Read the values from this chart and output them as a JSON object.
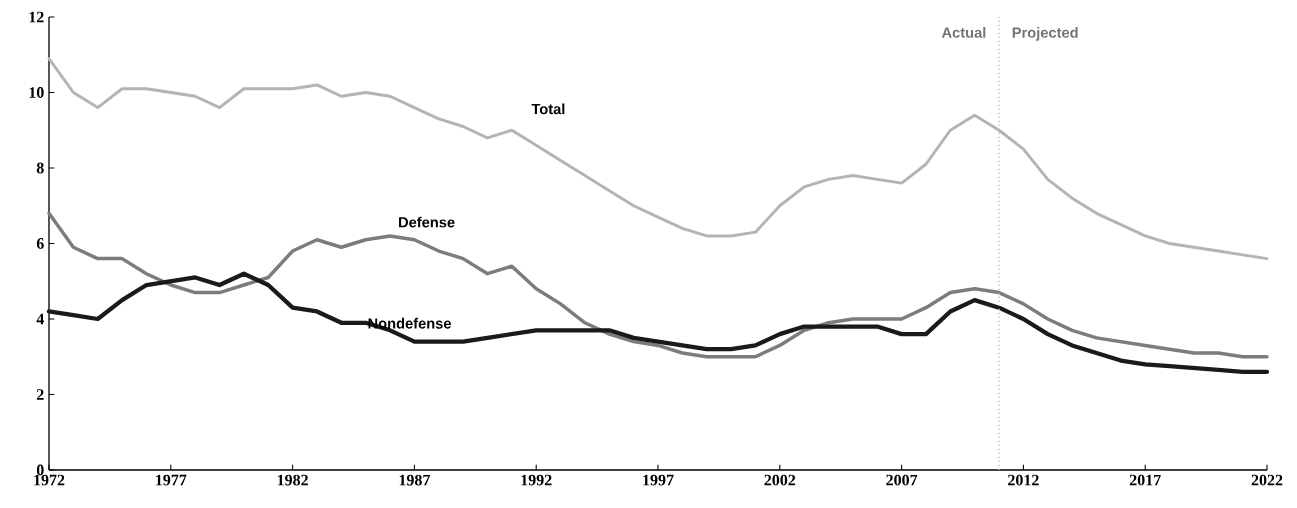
{
  "chart_data": {
    "type": "line",
    "x": [
      1972,
      1973,
      1974,
      1975,
      1976,
      1977,
      1978,
      1979,
      1980,
      1981,
      1982,
      1983,
      1984,
      1985,
      1986,
      1987,
      1988,
      1989,
      1990,
      1991,
      1992,
      1993,
      1994,
      1995,
      1996,
      1997,
      1998,
      1999,
      2000,
      2001,
      2002,
      2003,
      2004,
      2005,
      2006,
      2007,
      2008,
      2009,
      2010,
      2011,
      2012,
      2013,
      2014,
      2015,
      2016,
      2017,
      2018,
      2019,
      2020,
      2021,
      2022
    ],
    "series": [
      {
        "name": "Total",
        "color": "#b4b4b4",
        "values": [
          10.9,
          10.0,
          9.6,
          10.1,
          10.1,
          10.0,
          9.9,
          9.6,
          10.1,
          10.1,
          10.1,
          10.2,
          9.9,
          10.0,
          9.9,
          9.6,
          9.3,
          9.1,
          8.8,
          9.0,
          8.6,
          8.2,
          7.8,
          7.4,
          7.0,
          6.7,
          6.4,
          6.2,
          6.2,
          6.3,
          7.0,
          7.5,
          7.7,
          7.8,
          7.7,
          7.6,
          8.1,
          9.0,
          9.4,
          9.0,
          8.5,
          7.7,
          7.2,
          6.8,
          6.5,
          6.2,
          6.0,
          5.9,
          5.8,
          5.7,
          5.6
        ]
      },
      {
        "name": "Defense",
        "color": "#7c7c7c",
        "values": [
          6.8,
          5.9,
          5.6,
          5.6,
          5.2,
          4.9,
          4.7,
          4.7,
          4.9,
          5.1,
          5.8,
          6.1,
          5.9,
          6.1,
          6.2,
          6.1,
          5.8,
          5.6,
          5.2,
          5.4,
          4.8,
          4.4,
          3.9,
          3.6,
          3.4,
          3.3,
          3.1,
          3.0,
          3.0,
          3.0,
          3.3,
          3.7,
          3.9,
          4.0,
          4.0,
          4.0,
          4.3,
          4.7,
          4.8,
          4.7,
          4.4,
          4.0,
          3.7,
          3.5,
          3.4,
          3.3,
          3.2,
          3.1,
          3.1,
          3.0,
          3.0
        ]
      },
      {
        "name": "Nondefense",
        "color": "#1a1a1a",
        "values": [
          4.2,
          4.1,
          4.0,
          4.5,
          4.9,
          5.0,
          5.1,
          4.9,
          5.2,
          4.9,
          4.3,
          4.2,
          3.9,
          3.9,
          3.7,
          3.4,
          3.4,
          3.4,
          3.5,
          3.6,
          3.7,
          3.7,
          3.7,
          3.7,
          3.5,
          3.4,
          3.3,
          3.2,
          3.2,
          3.3,
          3.6,
          3.8,
          3.8,
          3.8,
          3.8,
          3.6,
          3.6,
          4.2,
          4.5,
          4.3,
          4.0,
          3.6,
          3.3,
          3.1,
          2.9,
          2.8,
          2.75,
          2.7,
          2.65,
          2.6,
          2.6
        ]
      }
    ],
    "xlim": [
      1972,
      2022
    ],
    "ylim": [
      0,
      12
    ],
    "xticks": [
      1972,
      1977,
      1982,
      1987,
      1992,
      1997,
      2002,
      2007,
      2012,
      2017,
      2022
    ],
    "yticks": [
      0,
      2,
      4,
      6,
      8,
      10,
      12
    ],
    "ref_lines": [
      {
        "axis": "x",
        "value": 2011,
        "color": "#b8b8b8",
        "line_style": "dotted"
      }
    ],
    "annotations": [
      "Actual",
      "Projected"
    ],
    "line_style": "solid",
    "marker": "none",
    "grid": false,
    "legend": false
  }
}
